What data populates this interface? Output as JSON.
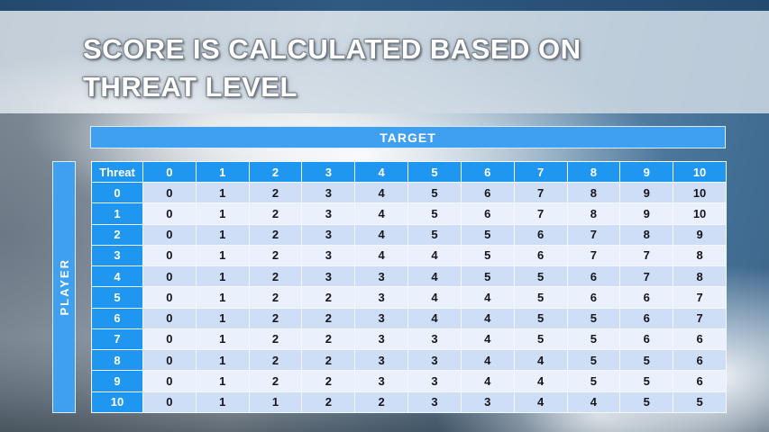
{
  "title": {
    "line1": "SCORE IS CALCULATED BASED ON",
    "line2": "THREAT LEVEL"
  },
  "matrix": {
    "target_label": "TARGET",
    "player_label": "PLAYER",
    "corner_label": "Threat",
    "column_headers": [
      "0",
      "1",
      "2",
      "3",
      "4",
      "5",
      "6",
      "7",
      "8",
      "9",
      "10"
    ],
    "rows": [
      {
        "threat": "0",
        "values": [
          0,
          1,
          2,
          3,
          4,
          5,
          6,
          7,
          8,
          9,
          10
        ]
      },
      {
        "threat": "1",
        "values": [
          0,
          1,
          2,
          3,
          4,
          5,
          6,
          7,
          8,
          9,
          10
        ]
      },
      {
        "threat": "2",
        "values": [
          0,
          1,
          2,
          3,
          4,
          5,
          5,
          6,
          7,
          8,
          9
        ]
      },
      {
        "threat": "3",
        "values": [
          0,
          1,
          2,
          3,
          4,
          4,
          5,
          6,
          7,
          7,
          8
        ]
      },
      {
        "threat": "4",
        "values": [
          0,
          1,
          2,
          3,
          3,
          4,
          5,
          5,
          6,
          7,
          8
        ]
      },
      {
        "threat": "5",
        "values": [
          0,
          1,
          2,
          2,
          3,
          4,
          4,
          5,
          6,
          6,
          7
        ]
      },
      {
        "threat": "6",
        "values": [
          0,
          1,
          2,
          2,
          3,
          4,
          4,
          5,
          5,
          6,
          7
        ]
      },
      {
        "threat": "7",
        "values": [
          0,
          1,
          2,
          2,
          3,
          3,
          4,
          5,
          5,
          6,
          6
        ]
      },
      {
        "threat": "8",
        "values": [
          0,
          1,
          2,
          2,
          3,
          3,
          4,
          4,
          5,
          5,
          6
        ]
      },
      {
        "threat": "9",
        "values": [
          0,
          1,
          2,
          2,
          3,
          3,
          4,
          4,
          5,
          5,
          6
        ]
      },
      {
        "threat": "10",
        "values": [
          0,
          1,
          1,
          2,
          2,
          3,
          3,
          4,
          4,
          5,
          5
        ]
      }
    ]
  },
  "colors": {
    "header_blue": "#1f97f1",
    "bar_blue": "#3fa0f2",
    "band_dark": "#cddef6",
    "band_light": "#eaf1fc",
    "top_strip_blue": "#2a5178",
    "title_text": "#ffffff",
    "cell_text": "#15151d"
  }
}
